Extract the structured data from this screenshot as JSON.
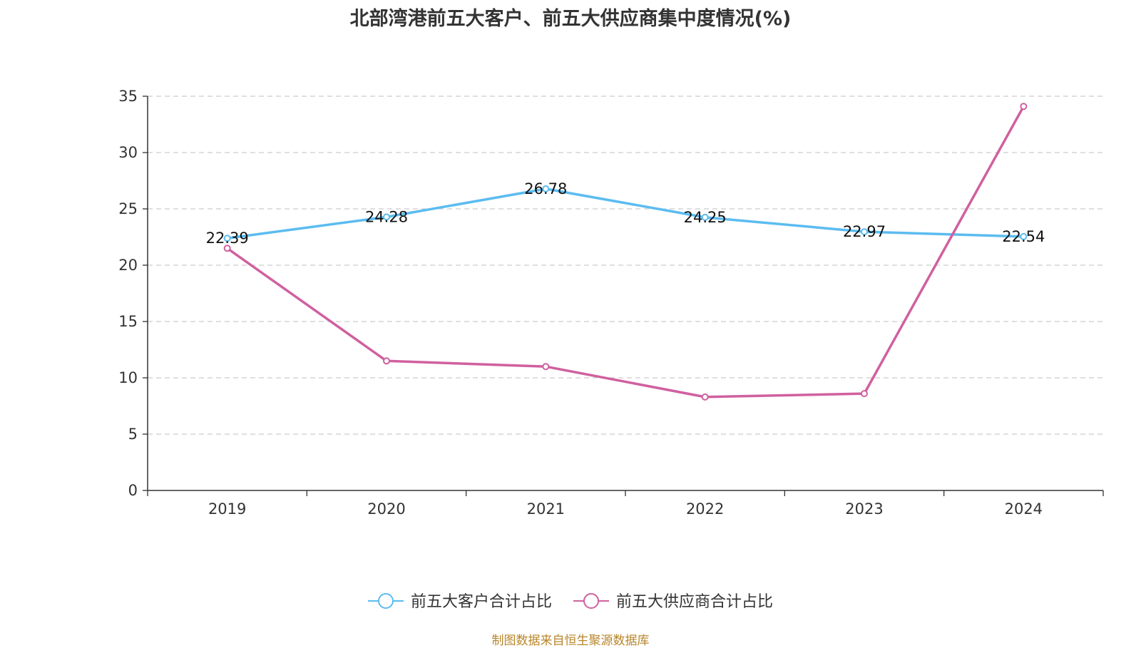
{
  "title": "北部湾港前五大客户、前五大供应商集中度情况(%)",
  "source": "制图数据来自恒生聚源数据库",
  "colors": {
    "customer": "#5bbcf0",
    "supplier": "#d0609f",
    "grid": "#cccccc",
    "axis": "#333333"
  },
  "chart_data": {
    "type": "line",
    "categories": [
      "2019",
      "2020",
      "2021",
      "2022",
      "2023",
      "2024"
    ],
    "ylim": [
      0,
      35
    ],
    "yticks": [
      0,
      5,
      10,
      15,
      20,
      25,
      30,
      35
    ],
    "grid": true,
    "legend_position": "bottom-center",
    "series": [
      {
        "name": "前五大客户合计占比",
        "color_key": "customer",
        "values": [
          22.39,
          24.28,
          26.78,
          24.25,
          22.97,
          22.54
        ],
        "labels": [
          "22.39",
          "24.28",
          "26.78",
          "24.25",
          "22.97",
          "22.54"
        ]
      },
      {
        "name": "前五大供应商合计占比",
        "color_key": "supplier",
        "values": [
          21.5,
          11.5,
          11.0,
          8.3,
          8.6,
          34.1
        ],
        "labels": []
      }
    ]
  }
}
